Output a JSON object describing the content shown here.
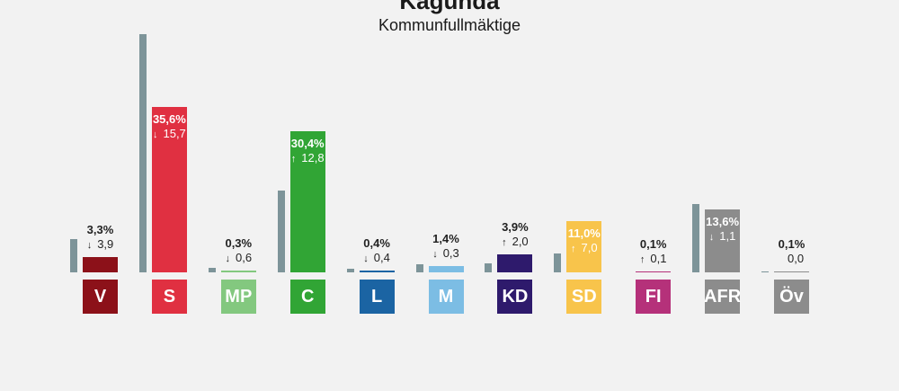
{
  "title": "Kagunda",
  "subtitle": "Kommunfullmäktige",
  "chart_data": {
    "type": "bar",
    "title": "Kagunda",
    "subtitle": "Kommunfullmäktige",
    "categories": [
      "V",
      "S",
      "MP",
      "C",
      "L",
      "M",
      "KD",
      "SD",
      "FI",
      "AFR",
      "Öv"
    ],
    "series": [
      {
        "values": [
          7.2,
          51.3,
          0.9,
          17.6,
          0.8,
          1.7,
          1.9,
          4.0,
          0.0,
          14.7,
          0.1
        ]
      },
      {
        "values": [
          3.3,
          35.6,
          0.3,
          30.4,
          0.4,
          1.4,
          3.9,
          11.0,
          0.1,
          13.6,
          0.1
        ]
      }
    ],
    "value_labels": [
      "3,3%",
      "35,6%",
      "0,3%",
      "30,4%",
      "0,4%",
      "1,4%",
      "3,9%",
      "11,0%",
      "0,1%",
      "13,6%",
      "0,1%"
    ],
    "change_labels": [
      "3,9",
      "15,7",
      "0,6",
      "12,8",
      "0,4",
      "0,3",
      "2,0",
      "7,0",
      "0,1",
      "1,1",
      "0,0"
    ],
    "change_direction": [
      "down",
      "down",
      "down",
      "up",
      "down",
      "down",
      "up",
      "up",
      "up",
      "down",
      "none"
    ],
    "colors": [
      "#8c1119",
      "#e03041",
      "#83c87f",
      "#31a535",
      "#1b64a3",
      "#7cbde4",
      "#2e1a6c",
      "#f8c44b",
      "#b5317a",
      "#8c8c8c",
      "#8c8c8c"
    ],
    "previous_color": "#7d9499",
    "ylim": [
      0,
      52
    ]
  }
}
